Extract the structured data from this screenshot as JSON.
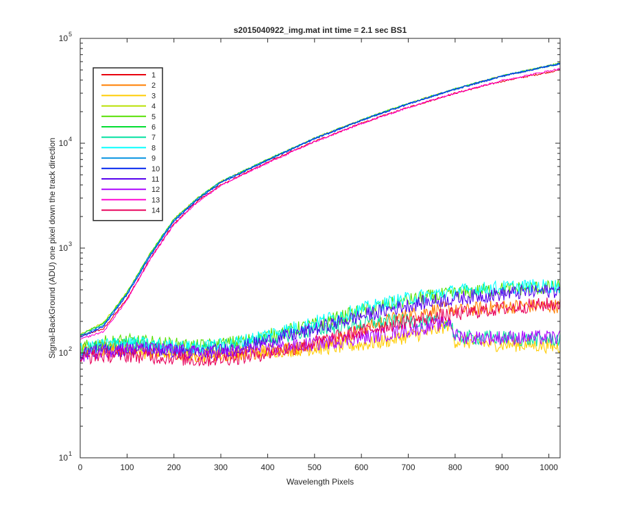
{
  "chart_data": {
    "type": "line",
    "title": "s2015040922_img.mat int time = 2.1 sec   BS1",
    "xlabel": "Wavelength Pixels",
    "ylabel": "Signal-BackGround (ADU) one pixel down the track direction",
    "xlim": [
      0,
      1024
    ],
    "ylim": [
      10,
      100000
    ],
    "yscale": "log",
    "x_ticks": [
      0,
      100,
      200,
      300,
      400,
      500,
      600,
      700,
      800,
      900,
      1000
    ],
    "y_ticks": [
      {
        "value": 10,
        "base": "10",
        "exp": "1"
      },
      {
        "value": 100,
        "base": "10",
        "exp": "2"
      },
      {
        "value": 1000,
        "base": "10",
        "exp": "3"
      },
      {
        "value": 10000,
        "base": "10",
        "exp": "4"
      },
      {
        "value": 100000,
        "base": "10",
        "exp": "5"
      }
    ],
    "grid": false,
    "legend_position": "top-left",
    "series": [
      {
        "name": "1",
        "color": "#e8000b",
        "x": [
          0,
          50,
          100,
          150,
          200,
          250,
          300,
          400,
          500,
          600,
          700,
          800,
          900,
          1024
        ],
        "y": [
          145,
          170,
          330,
          800,
          1700,
          2800,
          4000,
          6600,
          10400,
          15500,
          22000,
          30000,
          39000,
          50000
        ]
      },
      {
        "name": "2",
        "color": "#ff7f00",
        "x": [
          0,
          50,
          100,
          150,
          200,
          250,
          300,
          350,
          400,
          450,
          500,
          550,
          600,
          650,
          700,
          750,
          790,
          800,
          850,
          900,
          950,
          1024
        ],
        "y": [
          110,
          115,
          110,
          105,
          100,
          95,
          95,
          100,
          105,
          110,
          120,
          140,
          170,
          200,
          230,
          255,
          270,
          250,
          265,
          275,
          280,
          280
        ]
      },
      {
        "name": "3",
        "color": "#ffcc00",
        "x": [
          0,
          50,
          100,
          150,
          200,
          250,
          300,
          350,
          400,
          450,
          500,
          550,
          600,
          650,
          700,
          750,
          790,
          800,
          850,
          900,
          950,
          1024
        ],
        "y": [
          105,
          110,
          105,
          100,
          100,
          95,
          95,
          100,
          105,
          108,
          110,
          115,
          120,
          130,
          145,
          160,
          190,
          130,
          125,
          120,
          120,
          115
        ]
      },
      {
        "name": "4",
        "color": "#b8e000",
        "x": [
          0,
          50,
          100,
          150,
          200,
          250,
          300,
          400,
          500,
          600,
          700,
          800,
          900,
          1024
        ],
        "y": [
          150,
          195,
          380,
          900,
          1900,
          3000,
          4300,
          7000,
          11200,
          16700,
          24000,
          33000,
          44000,
          58000
        ]
      },
      {
        "name": "5",
        "color": "#55e000",
        "x": [
          0,
          50,
          100,
          150,
          200,
          250,
          300,
          350,
          400,
          450,
          500,
          550,
          600,
          650,
          700,
          750,
          800,
          850,
          900,
          950,
          1024
        ],
        "y": [
          110,
          125,
          130,
          125,
          120,
          115,
          120,
          130,
          145,
          165,
          185,
          215,
          250,
          285,
          315,
          345,
          370,
          390,
          405,
          415,
          420
        ]
      },
      {
        "name": "6",
        "color": "#00dd30",
        "x": [
          0,
          50,
          100,
          150,
          200,
          250,
          300,
          400,
          500,
          600,
          700,
          800,
          900,
          1024
        ],
        "y": [
          148,
          190,
          375,
          890,
          1880,
          2980,
          4280,
          6980,
          11150,
          16650,
          23900,
          32900,
          43800,
          57800
        ]
      },
      {
        "name": "7",
        "color": "#00e0a0",
        "x": [
          0,
          50,
          100,
          150,
          200,
          250,
          300,
          350,
          400,
          450,
          500,
          550,
          600,
          650,
          700,
          750,
          790,
          800,
          850,
          900,
          950,
          1024
        ],
        "y": [
          100,
          118,
          120,
          115,
          112,
          110,
          115,
          125,
          135,
          150,
          165,
          180,
          190,
          200,
          200,
          195,
          200,
          140,
          140,
          140,
          135,
          135
        ]
      },
      {
        "name": "8",
        "color": "#00ffff",
        "x": [
          0,
          50,
          100,
          150,
          200,
          250,
          300,
          350,
          400,
          450,
          500,
          550,
          600,
          650,
          700,
          750,
          800,
          850,
          900,
          950,
          1024
        ],
        "y": [
          105,
          120,
          125,
          120,
          115,
          112,
          118,
          130,
          150,
          170,
          195,
          225,
          260,
          295,
          330,
          360,
          385,
          405,
          420,
          430,
          435
        ]
      },
      {
        "name": "9",
        "color": "#0090e0",
        "x": [
          0,
          50,
          100,
          150,
          200,
          250,
          300,
          400,
          500,
          600,
          700,
          800,
          900,
          1024
        ],
        "y": [
          145,
          185,
          370,
          870,
          1850,
          2950,
          4250,
          6950,
          11100,
          16600,
          23800,
          32800,
          43700,
          57500
        ]
      },
      {
        "name": "10",
        "color": "#0022ee",
        "x": [
          0,
          50,
          100,
          150,
          200,
          250,
          300,
          400,
          500,
          600,
          700,
          800,
          900,
          1024
        ],
        "y": [
          140,
          180,
          360,
          850,
          1800,
          2900,
          4200,
          6900,
          11000,
          16500,
          23700,
          32700,
          43600,
          57400
        ]
      },
      {
        "name": "11",
        "color": "#5500ee",
        "x": [
          0,
          50,
          100,
          150,
          200,
          250,
          300,
          350,
          400,
          450,
          500,
          550,
          600,
          650,
          700,
          750,
          800,
          850,
          900,
          950,
          1024
        ],
        "y": [
          100,
          105,
          108,
          108,
          105,
          100,
          105,
          115,
          130,
          148,
          168,
          195,
          225,
          255,
          285,
          310,
          330,
          350,
          365,
          380,
          395
        ]
      },
      {
        "name": "12",
        "color": "#aa00ff",
        "x": [
          0,
          50,
          100,
          150,
          200,
          250,
          300,
          350,
          400,
          450,
          500,
          550,
          600,
          650,
          700,
          750,
          790,
          800,
          850,
          900,
          950,
          1024
        ],
        "y": [
          95,
          105,
          110,
          108,
          105,
          100,
          100,
          105,
          110,
          115,
          122,
          130,
          140,
          150,
          165,
          180,
          200,
          145,
          140,
          140,
          140,
          140
        ]
      },
      {
        "name": "13",
        "color": "#ff00d0",
        "x": [
          0,
          50,
          100,
          150,
          200,
          250,
          300,
          400,
          500,
          600,
          700,
          800,
          900,
          1024
        ],
        "y": [
          135,
          160,
          320,
          790,
          1680,
          2750,
          3950,
          6500,
          10300,
          15400,
          21900,
          30200,
          39500,
          51500
        ]
      },
      {
        "name": "14",
        "color": "#e8005a",
        "x": [
          0,
          50,
          100,
          150,
          200,
          250,
          300,
          350,
          400,
          450,
          500,
          550,
          600,
          650,
          700,
          750,
          800,
          850,
          900,
          950,
          1024
        ],
        "y": [
          90,
          95,
          95,
          92,
          90,
          85,
          88,
          92,
          100,
          110,
          125,
          142,
          160,
          180,
          200,
          218,
          235,
          250,
          265,
          280,
          295
        ]
      }
    ]
  }
}
